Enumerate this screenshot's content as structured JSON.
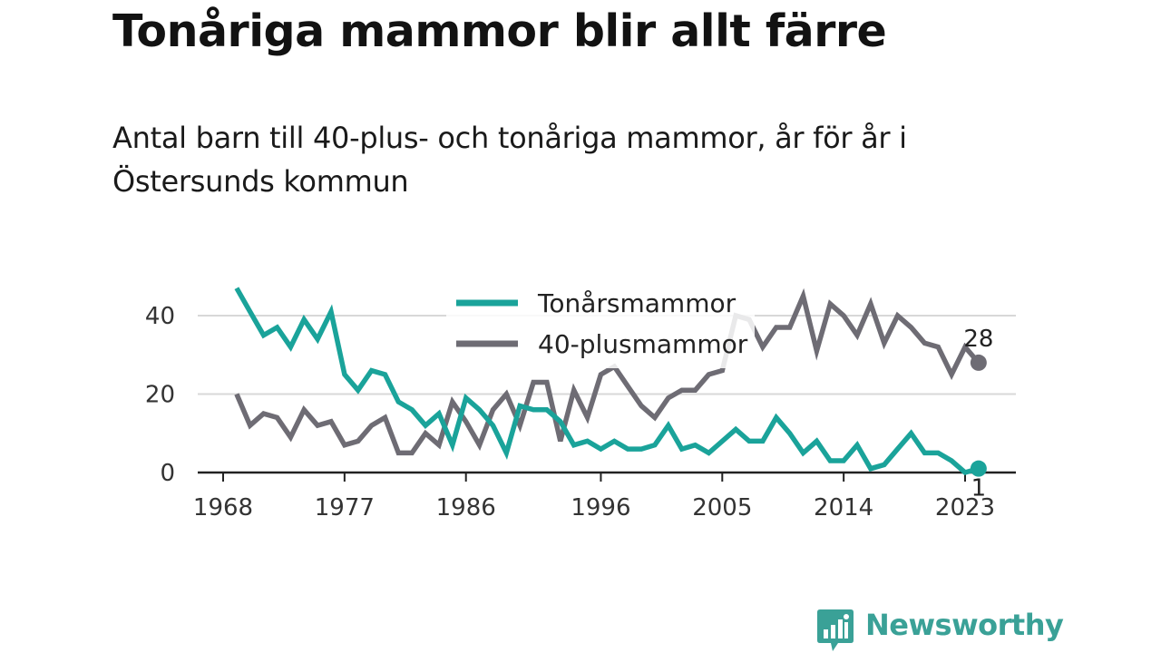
{
  "header": {
    "title": "Tonåriga mammor blir allt färre",
    "subtitle": "Antal barn till 40-plus- och tonåriga mammor, år för år i Östersunds kommun"
  },
  "brand": {
    "name": "Newsworthy",
    "color": "#3aa197"
  },
  "chart_data": {
    "type": "line",
    "x": [
      1969,
      1970,
      1971,
      1972,
      1973,
      1974,
      1975,
      1976,
      1977,
      1978,
      1979,
      1980,
      1981,
      1982,
      1983,
      1984,
      1985,
      1986,
      1987,
      1988,
      1989,
      1990,
      1991,
      1992,
      1993,
      1994,
      1995,
      1996,
      1997,
      1998,
      1999,
      2000,
      2001,
      2002,
      2003,
      2004,
      2005,
      2006,
      2007,
      2008,
      2009,
      2010,
      2011,
      2012,
      2013,
      2014,
      2015,
      2016,
      2017,
      2018,
      2019,
      2020,
      2021,
      2022,
      2023,
      2024
    ],
    "series": [
      {
        "name": "Tonårsmammor",
        "color": "#1aa39a",
        "values": [
          47,
          41,
          35,
          37,
          32,
          39,
          34,
          41,
          25,
          21,
          26,
          25,
          18,
          16,
          12,
          15,
          7,
          19,
          16,
          12,
          5,
          17,
          16,
          16,
          13,
          7,
          8,
          6,
          8,
          6,
          6,
          7,
          12,
          6,
          7,
          5,
          8,
          11,
          8,
          8,
          14,
          10,
          5,
          8,
          3,
          3,
          7,
          1,
          2,
          6,
          10,
          5,
          5,
          3,
          0,
          1
        ],
        "end_label": "1"
      },
      {
        "name": "40-plusmammor",
        "color": "#6e6c74",
        "values": [
          20,
          12,
          15,
          14,
          9,
          16,
          12,
          13,
          7,
          8,
          12,
          14,
          5,
          5,
          10,
          7,
          18,
          13,
          7,
          16,
          20,
          12,
          23,
          23,
          8,
          21,
          14,
          25,
          27,
          22,
          17,
          14,
          19,
          21,
          21,
          25,
          26,
          40,
          39,
          32,
          37,
          37,
          45,
          31,
          43,
          40,
          35,
          43,
          33,
          40,
          37,
          33,
          32,
          25,
          32,
          28
        ],
        "end_label": "28"
      }
    ],
    "x_ticks": [
      "1968",
      "1977",
      "1986",
      "1996",
      "2005",
      "2014",
      "2023"
    ],
    "y_ticks": [
      "0",
      "20",
      "40"
    ],
    "xlim": [
      1968,
      2025
    ],
    "ylim": [
      0,
      48
    ],
    "grid": "horizontal",
    "legend_position": "top-center",
    "title": "Tonåriga mammor blir allt färre",
    "xlabel": "",
    "ylabel": ""
  }
}
